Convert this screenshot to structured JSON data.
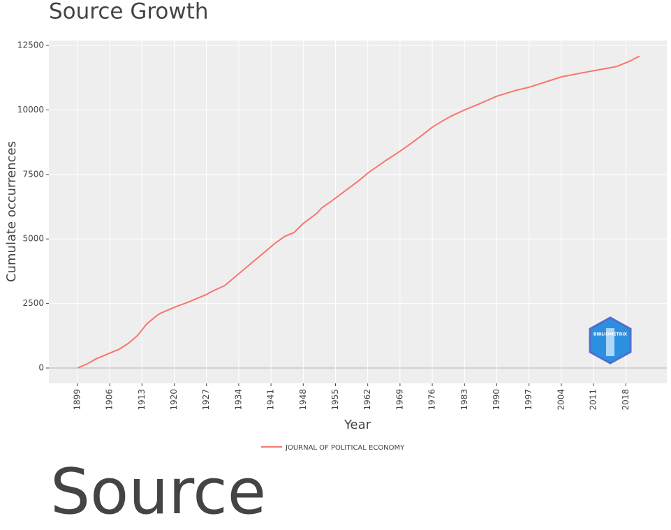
{
  "chart_data": {
    "type": "line",
    "title": "Source Growth",
    "x_label": "Year",
    "y_label": "Cumulate occurrences",
    "x": [
      1899,
      1901,
      1903,
      1905,
      1907,
      1908,
      1910,
      1912,
      1914,
      1916,
      1917,
      1920,
      1923,
      1927,
      1928,
      1931,
      1933,
      1936,
      1939,
      1942,
      1944,
      1946,
      1948,
      1951,
      1952,
      1954,
      1957,
      1960,
      1962,
      1964,
      1966,
      1969,
      1971,
      1974,
      1976,
      1978,
      1980,
      1983,
      1986,
      1990,
      1994,
      1997,
      2000,
      2004,
      2008,
      2012,
      2016,
      2019,
      2020,
      2021
    ],
    "series": [
      {
        "name": "JOURNAL OF POLITICAL ECONOMY",
        "color": "#f8766d",
        "values": [
          0,
          150,
          350,
          500,
          650,
          720,
          950,
          1250,
          1700,
          2000,
          2120,
          2350,
          2550,
          2850,
          2950,
          3200,
          3500,
          3950,
          4400,
          4850,
          5100,
          5250,
          5600,
          6000,
          6200,
          6450,
          6850,
          7250,
          7550,
          7800,
          8050,
          8400,
          8650,
          9050,
          9330,
          9550,
          9750,
          10000,
          10220,
          10530,
          10750,
          10880,
          11050,
          11280,
          11420,
          11550,
          11680,
          11900,
          12000,
          12080
        ]
      }
    ],
    "xlim": [
      1892.8,
      2026.9
    ],
    "xticks": [
      1899,
      1906,
      1913,
      1920,
      1927,
      1934,
      1941,
      1948,
      1955,
      1962,
      1969,
      1976,
      1983,
      1990,
      1997,
      2004,
      2011,
      2018
    ],
    "ylim": [
      -595,
      12690
    ],
    "yticks": [
      0,
      2500,
      5000,
      7500,
      10000,
      12500
    ],
    "grid": true,
    "legend": "bottom",
    "logo_text": "BIBLIOMETRIX"
  },
  "section_heading": "Source"
}
